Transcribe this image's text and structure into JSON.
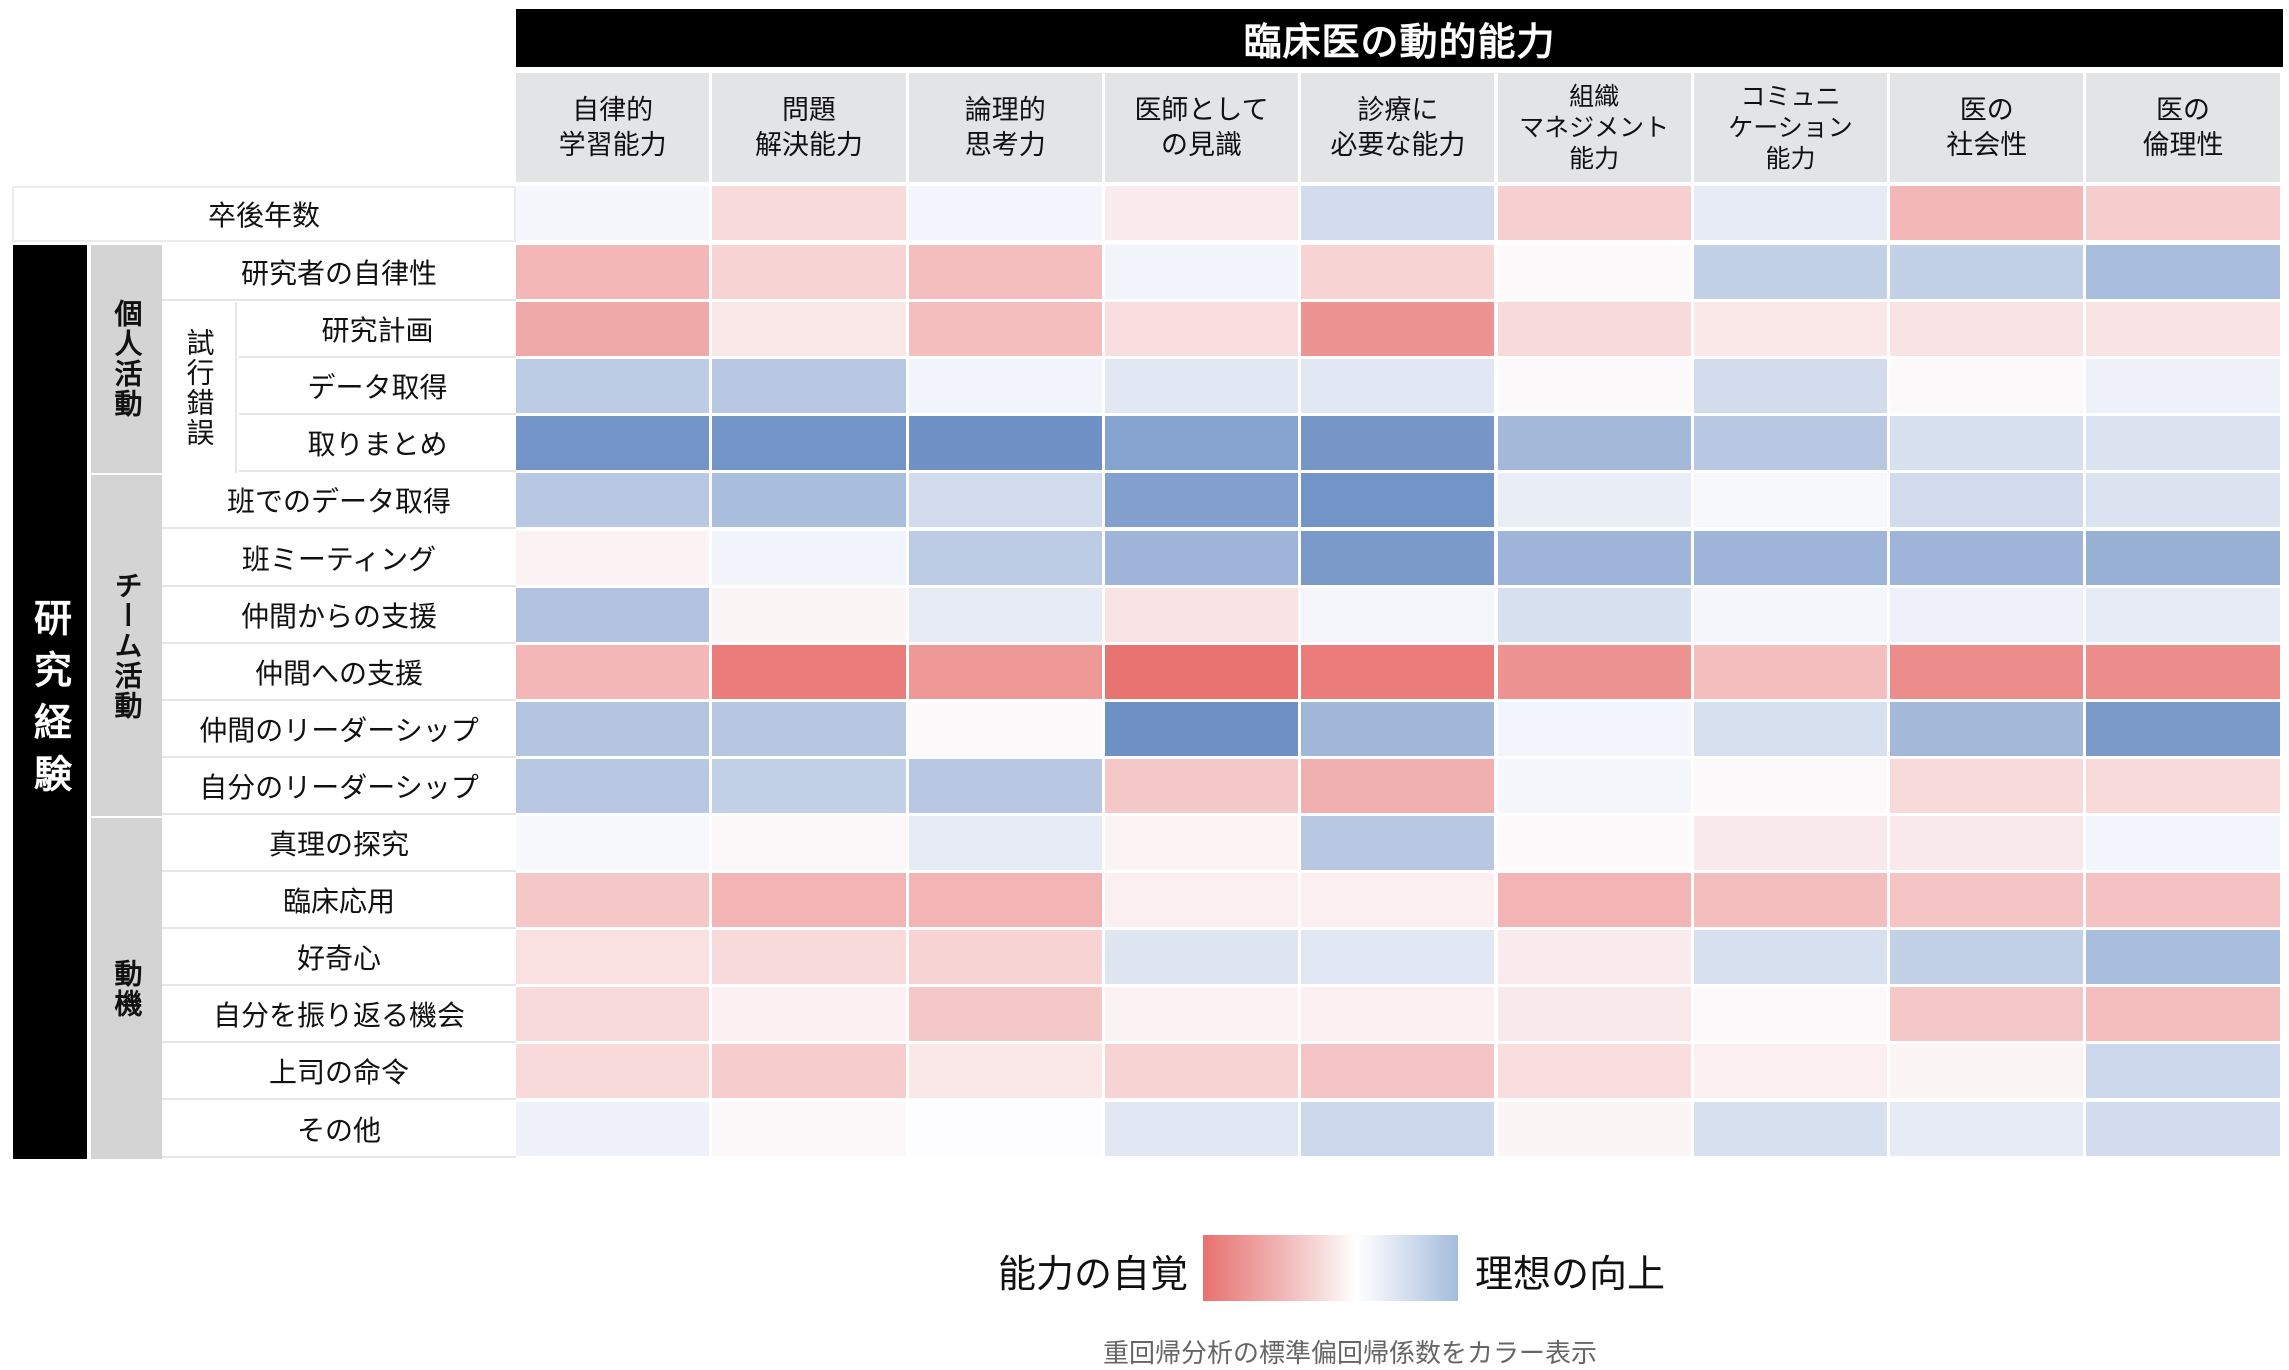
{
  "chart_data": {
    "type": "heatmap",
    "title": "臨床医の動的能力",
    "subtitle": "",
    "xlabel": "臨床医の動的能力",
    "ylabel": "研究経験",
    "columns": [
      "自律的\n学習能力",
      "問題\n解決能力",
      "論理的\n思考力",
      "医師として\nの見識",
      "診療に\n必要な能力",
      "組織\nマネジメント\n能力",
      "コミュニ\nケーション\n能力",
      "医の\n社会性",
      "医の\n倫理性"
    ],
    "row_groups": [
      {
        "name": "卒後年数",
        "rows": [
          "卒後年数"
        ]
      },
      {
        "group": "研究経験",
        "name": "個人活動",
        "rows": [
          "研究者の自律性",
          "研究計画",
          "データ取得",
          "取りまとめ"
        ],
        "subgroup": {
          "name": "試行錯誤",
          "rows": [
            "研究計画",
            "データ取得",
            "取りまとめ"
          ]
        }
      },
      {
        "group": "研究経験",
        "name": "チーム活動",
        "rows": [
          "班でのデータ取得",
          "班ミーティング",
          "仲間からの支援",
          "仲間への支援",
          "仲間のリーダーシップ",
          "自分のリーダーシップ"
        ]
      },
      {
        "group": "研究経験",
        "name": "動機",
        "rows": [
          "真理の探究",
          "臨床応用",
          "好奇心",
          "自分を振り返る機会",
          "上司の命令",
          "その他"
        ]
      }
    ],
    "rows": [
      "卒後年数",
      "研究者の自律性",
      "研究計画",
      "データ取得",
      "取りまとめ",
      "班でのデータ取得",
      "班ミーティング",
      "仲間からの支援",
      "仲間への支援",
      "仲間のリーダーシップ",
      "自分のリーダーシップ",
      "真理の探究",
      "臨床応用",
      "好奇心",
      "自分を振り返る機会",
      "上司の命令",
      "その他"
    ],
    "value_scale": "standardized partial regression coefficient (estimated from color); negative = red (能力の自覚), positive = blue (理想の向上)",
    "vrange": [
      -1,
      1
    ],
    "values": [
      [
        0.05,
        -0.25,
        0.07,
        -0.12,
        0.28,
        -0.32,
        0.15,
        -0.5,
        -0.35
      ],
      [
        -0.5,
        -0.3,
        -0.45,
        0.08,
        -0.3,
        -0.02,
        0.38,
        0.38,
        0.55
      ],
      [
        -0.6,
        -0.15,
        -0.45,
        -0.22,
        -0.75,
        -0.25,
        -0.15,
        -0.18,
        -0.18
      ],
      [
        0.42,
        0.45,
        0.08,
        0.18,
        0.18,
        -0.03,
        0.28,
        -0.03,
        0.1
      ],
      [
        0.9,
        0.9,
        0.92,
        0.78,
        0.88,
        0.58,
        0.45,
        0.25,
        0.22
      ],
      [
        0.45,
        0.55,
        0.28,
        0.8,
        0.9,
        0.14,
        0.04,
        0.28,
        0.22
      ],
      [
        -0.08,
        0.08,
        0.42,
        0.62,
        0.85,
        0.62,
        0.62,
        0.62,
        0.65
      ],
      [
        0.5,
        -0.06,
        0.15,
        -0.18,
        0.06,
        0.25,
        0.06,
        0.1,
        0.15
      ],
      [
        -0.5,
        -0.92,
        -0.72,
        -0.98,
        -0.92,
        -0.75,
        -0.45,
        -0.8,
        -0.8
      ],
      [
        0.48,
        0.46,
        -0.02,
        0.92,
        0.6,
        0.07,
        0.25,
        0.58,
        0.85
      ],
      [
        0.45,
        0.38,
        0.45,
        -0.38,
        -0.55,
        0.05,
        -0.03,
        -0.25,
        -0.25
      ],
      [
        0.04,
        -0.04,
        0.15,
        -0.07,
        0.45,
        -0.02,
        -0.14,
        -0.14,
        0.07
      ],
      [
        -0.38,
        -0.52,
        -0.52,
        -0.1,
        -0.1,
        -0.52,
        -0.45,
        -0.4,
        -0.42
      ],
      [
        -0.2,
        -0.25,
        -0.3,
        0.2,
        0.18,
        -0.12,
        0.25,
        0.38,
        0.55
      ],
      [
        -0.25,
        -0.1,
        -0.38,
        -0.08,
        -0.1,
        -0.14,
        -0.03,
        -0.38,
        -0.45
      ],
      [
        -0.25,
        -0.35,
        -0.15,
        -0.3,
        -0.4,
        -0.22,
        -0.1,
        -0.06,
        0.32
      ],
      [
        0.1,
        -0.04,
        0.0,
        0.18,
        0.32,
        -0.06,
        0.25,
        0.15,
        0.28
      ]
    ],
    "legend": {
      "left_label": "能力の自覚",
      "right_label": "理想の向上",
      "low_color": "#e8716f",
      "mid_color": "#ffffff",
      "high_color": "#6a8cc2"
    },
    "note": "重回帰分析の標準偏回帰係数をカラー表示",
    "grid": true,
    "legend_position": "bottom"
  },
  "header": {
    "title": "臨床医の動的能力",
    "columns": [
      "自律的\n学習能力",
      "問題\n解決能力",
      "論理的\n思考力",
      "医師として\nの見識",
      "診療に\n必要な能力",
      "組織\nマネジメント\n能力",
      "コミュニ\nケーション\n能力",
      "医の\n社会性",
      "医の\n倫理性"
    ]
  },
  "left": {
    "year_label": "卒後年数",
    "big_group": "研究経験",
    "groups": [
      {
        "name": "個人活動",
        "subgroup": "試行錯誤",
        "rows": [
          "研究者の自律性",
          "研究計画",
          "データ取得",
          "取りまとめ"
        ]
      },
      {
        "name": "チーム活動",
        "rows": [
          "班でのデータ取得",
          "班ミーティング",
          "仲間からの支援",
          "仲間への支援",
          "仲間のリーダーシップ",
          "自分のリーダーシップ"
        ]
      },
      {
        "name": "動機",
        "rows": [
          "真理の探究",
          "臨床応用",
          "好奇心",
          "自分を振り返る機会",
          "上司の命令",
          "その他"
        ]
      }
    ]
  },
  "legend": {
    "left_label": "能力の自覚",
    "right_label": "理想の向上",
    "note": "重回帰分析の標準偏回帰係数をカラー表示"
  },
  "colors": {
    "red": "#e8716f",
    "blue": "#6a8cc2",
    "header_bg": "#e3e4e6",
    "group_bg": "#d4d4d4",
    "title_bg": "#000000"
  }
}
